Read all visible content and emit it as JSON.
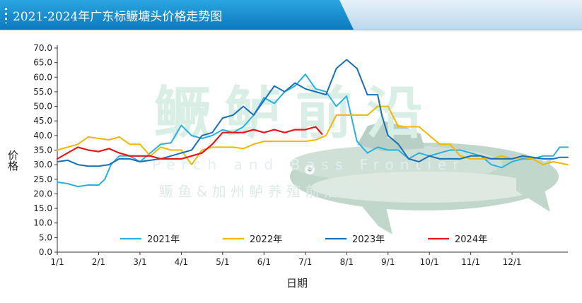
{
  "chart_data": {
    "type": "line",
    "title": "2021-2024年广东标鳜塘头价格走势图",
    "xlabel": "日期",
    "ylabel": "价格",
    "ylim": [
      0,
      70
    ],
    "yticks": [
      "0.0",
      "5.0",
      "10.0",
      "15.0",
      "20.0",
      "25.0",
      "30.0",
      "35.0",
      "40.0",
      "45.0",
      "50.0",
      "55.0",
      "60.0",
      "65.0",
      "70.0"
    ],
    "xlim": [
      0,
      12.35
    ],
    "xticks": [
      "1/1",
      "2/1",
      "3/1",
      "4/1",
      "5/1",
      "6/1",
      "7/1",
      "8/1",
      "9/1",
      "10/1",
      "11/1",
      "12/1"
    ],
    "grid": false,
    "legend_position": "bottom",
    "series": [
      {
        "name": "2021年",
        "color": "#29b0e3",
        "x": [
          0,
          0.25,
          0.5,
          0.75,
          1.0,
          1.15,
          1.3,
          1.5,
          1.75,
          2.0,
          2.25,
          2.5,
          2.75,
          3.0,
          3.25,
          3.5,
          3.75,
          4.0,
          4.25,
          4.5,
          4.75,
          5.0,
          5.25,
          5.5,
          5.75,
          6.0,
          6.25,
          6.5,
          6.75,
          7.0,
          7.25,
          7.5,
          7.75,
          8.0,
          8.25,
          8.5,
          8.75,
          9.0,
          9.25,
          9.5,
          9.75,
          10.0,
          10.25,
          10.5,
          10.75,
          11.0,
          11.25,
          11.5,
          11.75,
          12.0,
          12.15,
          12.35
        ],
        "y": [
          24,
          23.5,
          22.5,
          23,
          23,
          25,
          30,
          33,
          33,
          31,
          34,
          37,
          37.5,
          43.5,
          40,
          39,
          40,
          42,
          41,
          43,
          47,
          53,
          51,
          55,
          57,
          61,
          56,
          55,
          50,
          53.5,
          38,
          34,
          36,
          35,
          35,
          32,
          34,
          33,
          34,
          35,
          35,
          34,
          33,
          30,
          29,
          31,
          32,
          32,
          33,
          33,
          36,
          36
        ]
      },
      {
        "name": "2022年",
        "color": "#f2b705",
        "x": [
          0,
          0.25,
          0.5,
          0.75,
          1.0,
          1.25,
          1.5,
          1.75,
          2.0,
          2.25,
          2.5,
          2.75,
          3.0,
          3.25,
          3.5,
          3.75,
          4.0,
          4.25,
          4.5,
          4.75,
          5.0,
          5.25,
          5.5,
          5.75,
          6.0,
          6.25,
          6.5,
          6.75,
          7.0,
          7.25,
          7.5,
          7.75,
          8.0,
          8.25,
          8.5,
          8.75,
          9.0,
          9.25,
          9.5,
          9.75,
          10.0,
          10.25,
          10.5,
          10.75,
          11.0,
          11.25,
          11.5,
          11.75,
          12.0,
          12.35
        ],
        "y": [
          35,
          36,
          37,
          39.5,
          39,
          38.5,
          39.5,
          37,
          37,
          33,
          36,
          35,
          35,
          30,
          35,
          36,
          36,
          36,
          35.5,
          37,
          38,
          38,
          38,
          38,
          38,
          38.5,
          40,
          47,
          47,
          47,
          47,
          50,
          50,
          43,
          43,
          43,
          40,
          37,
          37,
          33,
          32,
          32,
          32,
          33,
          32,
          32.5,
          32,
          30,
          31,
          30
        ]
      },
      {
        "name": "2023年",
        "color": "#1a6fb5",
        "x": [
          0,
          0.25,
          0.5,
          0.75,
          1.0,
          1.25,
          1.5,
          1.75,
          2.0,
          2.25,
          2.5,
          2.75,
          3.0,
          3.25,
          3.5,
          3.75,
          4.0,
          4.25,
          4.5,
          4.75,
          5.0,
          5.25,
          5.5,
          5.75,
          6.0,
          6.25,
          6.5,
          6.75,
          7.0,
          7.25,
          7.5,
          7.75,
          7.85,
          8.0,
          8.25,
          8.5,
          8.75,
          9.0,
          9.25,
          9.5,
          9.75,
          10.0,
          10.25,
          10.5,
          10.75,
          11.0,
          11.25,
          11.5,
          11.75,
          12.0,
          12.15,
          12.35
        ],
        "y": [
          31,
          31.5,
          30,
          29.5,
          29.5,
          30,
          32,
          32,
          31,
          31.5,
          32,
          33,
          34,
          35,
          40,
          41,
          46,
          47,
          50,
          47,
          52,
          57,
          55,
          58,
          56,
          55,
          54,
          63,
          66,
          63,
          54,
          54,
          47,
          40,
          37,
          32,
          31,
          33,
          32,
          32,
          32,
          33,
          33,
          32,
          32,
          32,
          33,
          32.5,
          32,
          32,
          32.5,
          32.5
        ]
      },
      {
        "name": "2024年",
        "color": "#e3171d",
        "x": [
          0,
          0.25,
          0.5,
          0.75,
          1.0,
          1.25,
          1.5,
          1.75,
          2.0,
          2.25,
          2.5,
          2.75,
          3.0,
          3.25,
          3.5,
          3.75,
          4.0,
          4.25,
          4.5,
          4.75,
          5.0,
          5.25,
          5.5,
          5.75,
          6.0,
          6.25,
          6.4
        ],
        "y": [
          32,
          34,
          36,
          35,
          34.5,
          35.5,
          34,
          33,
          33,
          33,
          32,
          32,
          32,
          33,
          34,
          37,
          41,
          41,
          41,
          42,
          41,
          42,
          41,
          42,
          42,
          43,
          40.5
        ]
      }
    ]
  },
  "header": {
    "title": "2021-2024年广东标鳜塘头价格走势图"
  },
  "watermark": {
    "main": "鳜鲈前沿",
    "english": "Perch and Bass Frontier",
    "sub": "鳜 鱼 & 加 州 鲈 养 殖 前 沿 资 讯"
  }
}
